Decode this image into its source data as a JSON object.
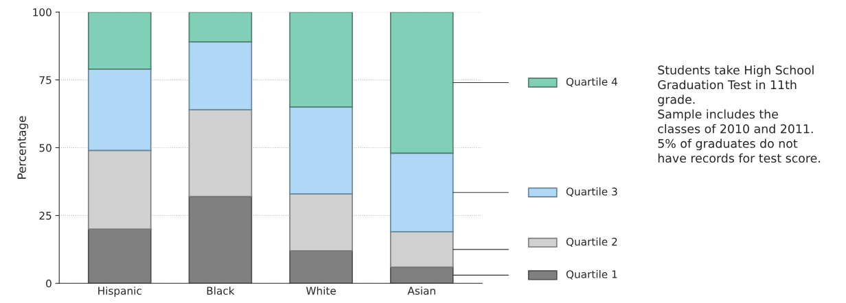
{
  "chart_data": {
    "type": "bar",
    "stacked": true,
    "ylabel": "Percentage",
    "categories": [
      "Hispanic",
      "Black",
      "White",
      "Asian"
    ],
    "series": [
      {
        "name": "Quartile 1",
        "color": "#808080",
        "values": [
          20,
          32,
          12,
          6
        ]
      },
      {
        "name": "Quartile 2",
        "color": "#d0d0d0",
        "values": [
          29,
          32,
          21,
          13
        ]
      },
      {
        "name": "Quartile 3",
        "color": "#aed8f5",
        "values": [
          30,
          25,
          32,
          29
        ]
      },
      {
        "name": "Quartile 4",
        "color": "#80cfb7",
        "values": [
          21,
          11,
          35,
          52
        ]
      }
    ],
    "ylim": [
      0,
      100
    ],
    "yticks": [
      0,
      25,
      50,
      75,
      100
    ],
    "grid": "y",
    "legend": "right",
    "annotations": [
      "Students take High School\nGraduation Test in 11th\ngrade.\nSample includes the\nclasses of 2010 and 2011.\n5% of graduates do not\nhave records for test score."
    ]
  }
}
